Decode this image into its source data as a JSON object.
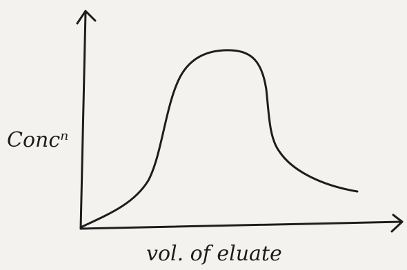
{
  "axes": {
    "y_label": "Concⁿ",
    "x_label": "vol. of eluate"
  }
}
